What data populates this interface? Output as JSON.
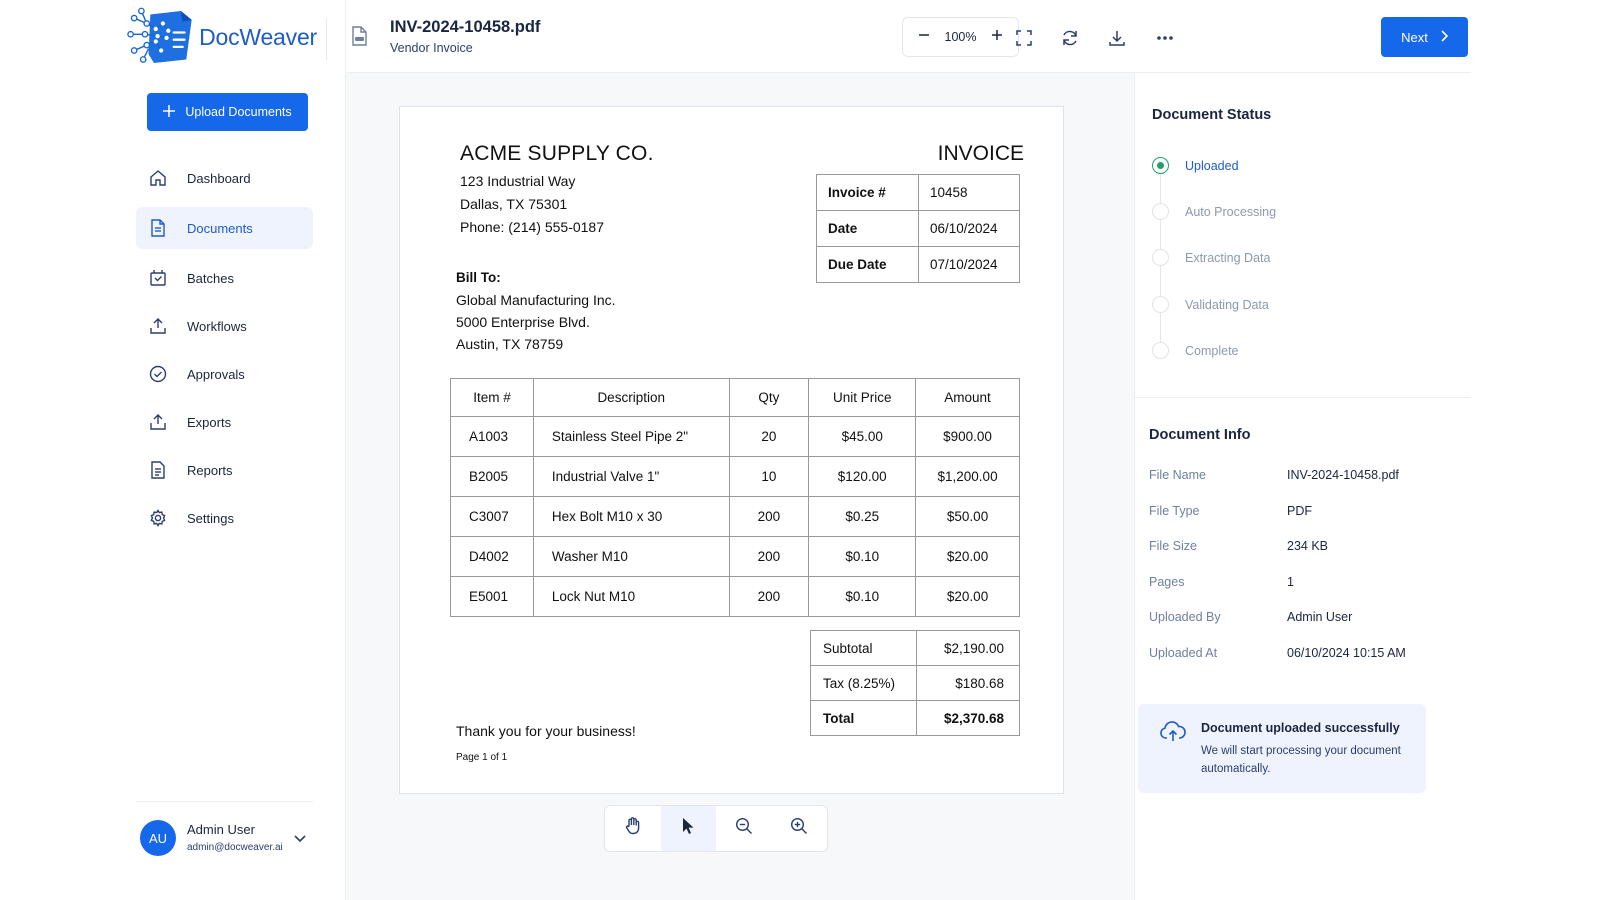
{
  "app": {
    "name": "DocWeaver"
  },
  "header": {
    "file_title": "INV-2024-10458.pdf",
    "file_subtitle": "Vendor Invoice",
    "zoom": "100%",
    "icons": [
      "minus-icon",
      "plus-icon",
      "fullscreen-icon",
      "refresh-icon",
      "download-icon",
      "more-icon",
      "pdf-file-icon"
    ],
    "next_label": "Next"
  },
  "sidebar": {
    "upload_label": "Upload Documents",
    "items": [
      {
        "label": "Dashboard",
        "icon": "home-icon"
      },
      {
        "label": "Documents",
        "icon": "document-icon",
        "active": true
      },
      {
        "label": "Batches",
        "icon": "batches-icon"
      },
      {
        "label": "Workflows",
        "icon": "workflows-icon"
      },
      {
        "label": "Approvals",
        "icon": "check-circle-icon"
      },
      {
        "label": "Exports",
        "icon": "export-icon"
      },
      {
        "label": "Reports",
        "icon": "reports-icon"
      },
      {
        "label": "Settings",
        "icon": "gear-icon"
      }
    ],
    "user": {
      "initials": "AU",
      "name": "Admin User",
      "email": "admin@docweaver.ai"
    }
  },
  "invoice": {
    "company": "ACME SUPPLY CO.",
    "address": [
      "123 Industrial Way",
      "Dallas, TX 75301",
      "Phone: (214) 555-0187"
    ],
    "doc_type": "INVOICE",
    "meta": [
      {
        "k": "Invoice #",
        "v": "10458"
      },
      {
        "k": "Date",
        "v": "06/10/2024"
      },
      {
        "k": "Due Date",
        "v": "07/10/2024"
      }
    ],
    "bill_to_label": "Bill To:",
    "bill_to": [
      "Global Manufacturing Inc.",
      "5000 Enterprise Blvd.",
      "Austin, TX 78759"
    ],
    "columns": [
      "Item #",
      "Description",
      "Qty",
      "Unit Price",
      "Amount"
    ],
    "rows": [
      [
        "A1003",
        "Stainless Steel Pipe 2\"",
        "20",
        "$45.00",
        "$900.00"
      ],
      [
        "B2005",
        "Industrial Valve 1\"",
        "10",
        "$120.00",
        "$1,200.00"
      ],
      [
        "C3007",
        "Hex Bolt M10 x 30",
        "200",
        "$0.25",
        "$50.00"
      ],
      [
        "D4002",
        "Washer M10",
        "200",
        "$0.10",
        "$20.00"
      ],
      [
        "E5001",
        "Lock Nut M10",
        "200",
        "$0.10",
        "$20.00"
      ]
    ],
    "totals": [
      {
        "k": "Subtotal",
        "v": "$2,190.00"
      },
      {
        "k": "Tax (8.25%)",
        "v": "$180.68"
      },
      {
        "k": "Total",
        "v": "$2,370.68"
      }
    ],
    "thanks": "Thank you for your business!",
    "page": "Page 1 of 1"
  },
  "viewer_tools": [
    "hand-icon",
    "cursor-icon",
    "zoom-out-icon",
    "zoom-in-icon"
  ],
  "status": {
    "title": "Document Status",
    "steps": [
      {
        "label": "Uploaded",
        "done": true
      },
      {
        "label": "Auto Processing",
        "done": false
      },
      {
        "label": "Extracting Data",
        "done": false
      },
      {
        "label": "Validating Data",
        "done": false
      },
      {
        "label": "Complete",
        "done": false
      }
    ]
  },
  "info": {
    "title": "Document Info",
    "fields": [
      {
        "k": "File Name",
        "v": "INV-2024-10458.pdf"
      },
      {
        "k": "File Type",
        "v": "PDF"
      },
      {
        "k": "File Size",
        "v": "234 KB"
      },
      {
        "k": "Pages",
        "v": "1"
      },
      {
        "k": "Uploaded By",
        "v": "Admin User"
      },
      {
        "k": "Uploaded At",
        "v": "06/10/2024 10:15 AM"
      }
    ]
  },
  "toast": {
    "title": "Document uploaded successfully",
    "body": "We will start processing your document automatically."
  },
  "colors": {
    "accent": "#1668ea",
    "success": "#22a06b",
    "text": "#1a2540"
  }
}
